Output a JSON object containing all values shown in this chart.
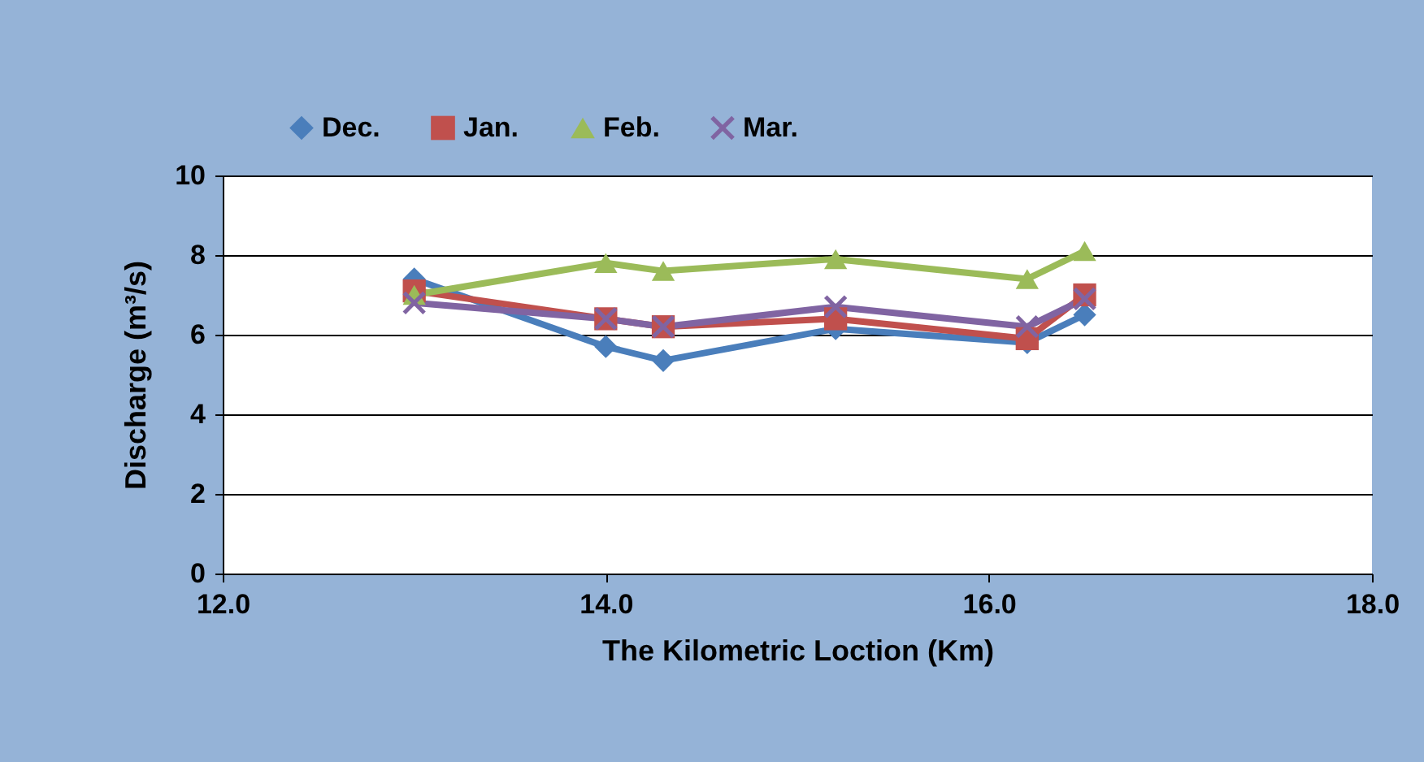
{
  "chart_data": {
    "type": "line",
    "xlabel": "The Kilometric Loction (Km)",
    "ylabel": "Discharge (m³/s)",
    "x": [
      13.0,
      14.0,
      14.3,
      15.2,
      16.2,
      16.5
    ],
    "series": [
      {
        "name": "Dec.",
        "color": "#4a7ebb",
        "marker": "diamond",
        "values": [
          7.4,
          5.7,
          5.35,
          6.15,
          5.8,
          6.5
        ]
      },
      {
        "name": "Jan.",
        "color": "#c0504d",
        "marker": "square",
        "values": [
          7.1,
          6.4,
          6.2,
          6.4,
          5.9,
          7.0
        ]
      },
      {
        "name": "Feb.",
        "color": "#9bbb59",
        "marker": "triangle",
        "values": [
          7.0,
          7.8,
          7.6,
          7.9,
          7.4,
          8.1
        ]
      },
      {
        "name": "Mar.",
        "color": "#8064a2",
        "marker": "cross",
        "values": [
          6.8,
          6.4,
          6.2,
          6.7,
          6.2,
          6.9
        ]
      }
    ],
    "xlim": [
      12,
      18
    ],
    "xticks": [
      {
        "value": 12,
        "label": "12.0"
      },
      {
        "value": 14,
        "label": "14.0"
      },
      {
        "value": 16,
        "label": "16.0"
      },
      {
        "value": 18,
        "label": "18.0"
      }
    ],
    "ylim": [
      0,
      10
    ],
    "yticks": [
      0,
      2,
      4,
      6,
      8,
      10
    ],
    "grid": "y",
    "legend": "top",
    "line_style": "solid"
  }
}
